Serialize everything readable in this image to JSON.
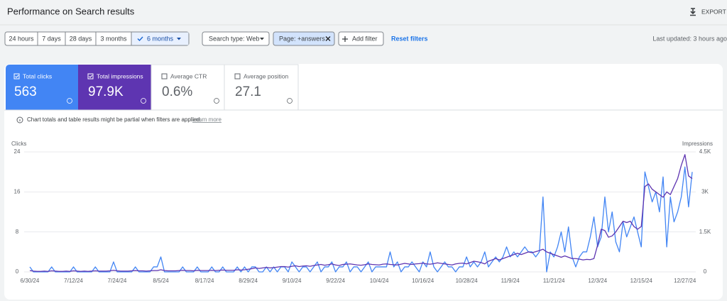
{
  "header": {
    "title": "Performance on Search results",
    "export": "EXPORT"
  },
  "filters": {
    "ranges": [
      "24 hours",
      "7 days",
      "28 days",
      "3 months",
      "6 months"
    ],
    "search_type": "Search type: Web",
    "page_filter": "Page: +answers",
    "add_filter": "Add filter",
    "reset": "Reset filters",
    "last_updated": "Last updated: 3 hours ago"
  },
  "metrics": [
    {
      "label": "Total clicks",
      "value": "563"
    },
    {
      "label": "Total impressions",
      "value": "97.9K"
    },
    {
      "label": "Average CTR",
      "value": "0.6%"
    },
    {
      "label": "Average position",
      "value": "27.1"
    }
  ],
  "notice": {
    "text": "Chart totals and table results might be partial when filters are applied.",
    "link": "Learn more"
  },
  "chart_data": {
    "type": "line",
    "ylabel": "Clicks",
    "y2label": "Impressions",
    "ylim": [
      0,
      24
    ],
    "yticks": [
      0,
      8,
      16,
      24
    ],
    "y2lim": [
      0,
      4500
    ],
    "y2ticks": [
      0,
      {
        "value": 1500,
        "label": "1.5K"
      },
      {
        "value": 3000,
        "label": "3K"
      },
      {
        "value": 4500,
        "label": "4.5K"
      }
    ],
    "grid": true,
    "categories": [
      "6/30/24",
      null,
      null,
      null,
      null,
      null,
      null,
      null,
      null,
      null,
      null,
      null,
      "7/12/24",
      null,
      null,
      null,
      null,
      null,
      null,
      null,
      null,
      null,
      null,
      null,
      "7/24/24",
      null,
      null,
      null,
      null,
      null,
      null,
      null,
      null,
      null,
      null,
      null,
      "8/5/24",
      null,
      null,
      null,
      null,
      null,
      null,
      null,
      null,
      null,
      null,
      null,
      "8/17/24",
      null,
      null,
      null,
      null,
      null,
      null,
      null,
      null,
      null,
      null,
      null,
      "8/29/24",
      null,
      null,
      null,
      null,
      null,
      null,
      null,
      null,
      null,
      null,
      null,
      "9/10/24",
      null,
      null,
      null,
      null,
      null,
      null,
      null,
      null,
      null,
      null,
      null,
      "9/22/24",
      null,
      null,
      null,
      null,
      null,
      null,
      null,
      null,
      null,
      null,
      null,
      "10/4/24",
      null,
      null,
      null,
      null,
      null,
      null,
      null,
      null,
      null,
      null,
      null,
      "10/16/24",
      null,
      null,
      null,
      null,
      null,
      null,
      null,
      null,
      null,
      null,
      null,
      "10/28/24",
      null,
      null,
      null,
      null,
      null,
      null,
      null,
      null,
      null,
      null,
      null,
      "11/9/24",
      null,
      null,
      null,
      null,
      null,
      null,
      null,
      null,
      null,
      null,
      null,
      "11/21/24",
      null,
      null,
      null,
      null,
      null,
      null,
      null,
      null,
      null,
      null,
      null,
      "12/3/24",
      null,
      null,
      null,
      null,
      null,
      null,
      null,
      null,
      null,
      null,
      null,
      "12/15/24",
      null,
      null,
      null,
      null,
      null,
      null,
      null,
      null,
      null,
      null,
      null,
      "12/27/24",
      null,
      null
    ],
    "series": [
      {
        "name": "Clicks",
        "color": "#4285f4",
        "values": [
          1,
          0,
          0,
          0,
          0,
          0,
          1,
          0,
          0,
          0,
          0,
          0,
          1,
          0,
          0,
          0,
          0,
          0,
          1,
          0,
          0,
          0,
          0,
          2,
          0,
          0,
          0,
          0,
          0,
          1,
          0,
          0,
          0,
          0,
          1,
          1,
          3,
          0,
          0,
          0,
          0,
          0,
          1,
          0,
          0,
          0,
          1,
          0,
          0,
          0,
          1,
          0,
          0,
          1,
          0,
          0,
          0,
          1,
          0,
          1,
          0,
          1,
          1,
          0,
          0,
          1,
          0,
          1,
          0,
          1,
          1,
          0,
          2,
          1,
          0,
          1,
          1,
          0,
          1,
          2,
          0,
          1,
          1,
          2,
          0,
          1,
          1,
          2,
          0,
          1,
          1,
          0,
          1,
          2,
          0,
          1,
          1,
          1,
          1,
          4,
          1,
          2,
          0,
          1,
          1,
          2,
          1,
          0,
          2,
          1,
          4,
          1,
          0,
          1,
          2,
          1,
          1,
          0,
          1,
          1,
          3,
          1,
          2,
          1,
          2,
          4,
          1,
          2,
          3,
          2,
          3,
          5,
          3,
          4,
          3,
          4,
          5,
          4,
          4,
          3,
          4,
          15,
          0,
          4,
          3,
          5,
          8,
          4,
          9,
          3,
          1,
          3,
          4,
          4,
          7,
          11,
          5,
          7,
          15,
          8,
          12,
          6,
          4,
          10,
          7,
          9,
          11,
          8,
          5,
          20,
          17,
          14,
          16,
          12,
          19,
          5,
          15,
          10,
          12,
          15,
          21,
          13,
          20
        ]
      },
      {
        "name": "Impressions",
        "color": "#5e35b1",
        "axis": "y2",
        "values": [
          50,
          30,
          20,
          20,
          30,
          20,
          40,
          30,
          20,
          20,
          30,
          20,
          40,
          30,
          20,
          30,
          20,
          30,
          40,
          30,
          30,
          30,
          40,
          60,
          40,
          30,
          30,
          30,
          40,
          50,
          40,
          40,
          30,
          40,
          50,
          50,
          80,
          50,
          40,
          40,
          40,
          50,
          60,
          50,
          50,
          40,
          60,
          50,
          50,
          50,
          60,
          50,
          60,
          70,
          60,
          60,
          60,
          80,
          70,
          80,
          100,
          120,
          150,
          130,
          150,
          170,
          150,
          160,
          180,
          200,
          200,
          180,
          210,
          230,
          200,
          220,
          230,
          210,
          240,
          260,
          280,
          250,
          270,
          300,
          260,
          240,
          280,
          290,
          300,
          280,
          260,
          250,
          270,
          300,
          280,
          270,
          260,
          290,
          300,
          280,
          270,
          260,
          290,
          320,
          300,
          280,
          300,
          310,
          330,
          300,
          290,
          310,
          340,
          320,
          300,
          280,
          260,
          300,
          320,
          330,
          300,
          350,
          400,
          380,
          350,
          300,
          400,
          450,
          500,
          450,
          500,
          550,
          600,
          650,
          700,
          650,
          700,
          750,
          720,
          760,
          800,
          850,
          750,
          700,
          650,
          600,
          550,
          600,
          550,
          500,
          500,
          480,
          450,
          470,
          460,
          500,
          1000,
          1600,
          1550,
          1300,
          1350,
          1500,
          1700,
          1900,
          1850,
          1900,
          1700,
          1600,
          1700,
          3200,
          3300,
          3100,
          3000,
          2900,
          2800,
          3000,
          2900,
          3200,
          3500,
          4000,
          4400,
          3600,
          3500
        ]
      }
    ]
  }
}
